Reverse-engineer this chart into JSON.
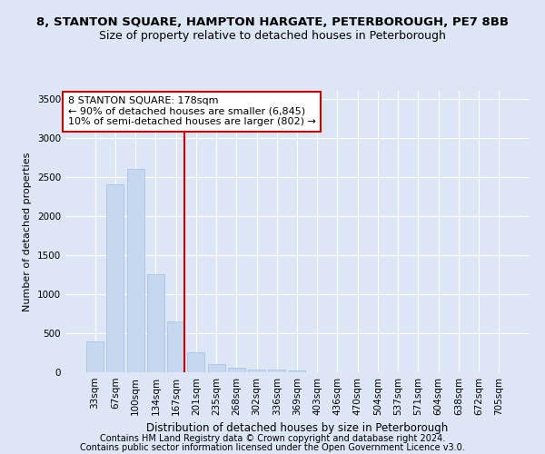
{
  "title1": "8, STANTON SQUARE, HAMPTON HARGATE, PETERBOROUGH, PE7 8BB",
  "title2": "Size of property relative to detached houses in Peterborough",
  "xlabel": "Distribution of detached houses by size in Peterborough",
  "ylabel": "Number of detached properties",
  "categories": [
    "33sqm",
    "67sqm",
    "100sqm",
    "134sqm",
    "167sqm",
    "201sqm",
    "235sqm",
    "268sqm",
    "302sqm",
    "336sqm",
    "369sqm",
    "403sqm",
    "436sqm",
    "470sqm",
    "504sqm",
    "537sqm",
    "571sqm",
    "604sqm",
    "638sqm",
    "672sqm",
    "705sqm"
  ],
  "values": [
    400,
    2400,
    2600,
    1250,
    650,
    250,
    100,
    55,
    40,
    30,
    20,
    5,
    0,
    0,
    0,
    0,
    0,
    0,
    0,
    0,
    0
  ],
  "bar_color": "#c5d8f0",
  "bar_edge_color": "#a0bedd",
  "vline_color": "#cc0000",
  "annotation_line1": "8 STANTON SQUARE: 178sqm",
  "annotation_line2": "← 90% of detached houses are smaller (6,845)",
  "annotation_line3": "10% of semi-detached houses are larger (802) →",
  "annotation_box_color": "#ffffff",
  "annotation_box_edge_color": "#cc0000",
  "ylim": [
    0,
    3600
  ],
  "yticks": [
    0,
    500,
    1000,
    1500,
    2000,
    2500,
    3000,
    3500
  ],
  "background_color": "#dce6f5",
  "grid_color": "#ffffff",
  "footer1": "Contains HM Land Registry data © Crown copyright and database right 2024.",
  "footer2": "Contains public sector information licensed under the Open Government Licence v3.0.",
  "title1_fontsize": 9.5,
  "title2_fontsize": 9,
  "xlabel_fontsize": 8.5,
  "ylabel_fontsize": 8,
  "tick_fontsize": 7.5,
  "annotation_fontsize": 8,
  "footer_fontsize": 7
}
